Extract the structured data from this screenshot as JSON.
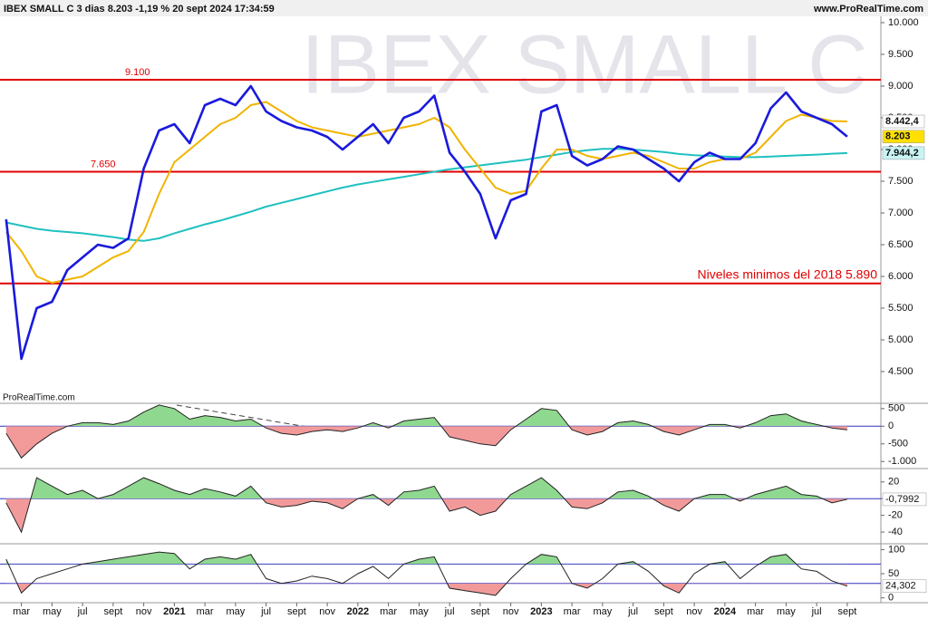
{
  "chart_data": {
    "type": "line",
    "title": "IBEX SMALL C 3 dias 8.203 -1,19 % 20 sept 2024 17:34:59",
    "source": "www.ProRealTime.com",
    "watermark": "IBEX SMALL C",
    "brand": "ProRealTime.com",
    "x": [
      1,
      2,
      3,
      4,
      5,
      6,
      7,
      8,
      9,
      10,
      11,
      12,
      13,
      14,
      15,
      16,
      17,
      18,
      19,
      20,
      21,
      22,
      23,
      24,
      25,
      26,
      27,
      28,
      29,
      30,
      31,
      32,
      33,
      34,
      35,
      36,
      37,
      38,
      39,
      40,
      41,
      42,
      43,
      44,
      45,
      46,
      47,
      48,
      49,
      50,
      51,
      52,
      53,
      54,
      55,
      56
    ],
    "xlim": [
      0.6,
      58.2
    ],
    "xticks": [
      {
        "value": 2,
        "label": "mar"
      },
      {
        "value": 4,
        "label": "may"
      },
      {
        "value": 6,
        "label": "jul"
      },
      {
        "value": 8,
        "label": "sept"
      },
      {
        "value": 10,
        "label": "nov"
      },
      {
        "value": 12,
        "label": "2021"
      },
      {
        "value": 14,
        "label": "mar"
      },
      {
        "value": 16,
        "label": "may"
      },
      {
        "value": 18,
        "label": "jul"
      },
      {
        "value": 20,
        "label": "sept"
      },
      {
        "value": 22,
        "label": "nov"
      },
      {
        "value": 24,
        "label": "2022"
      },
      {
        "value": 26,
        "label": "mar"
      },
      {
        "value": 28,
        "label": "may"
      },
      {
        "value": 30,
        "label": "jul"
      },
      {
        "value": 32,
        "label": "sept"
      },
      {
        "value": 34,
        "label": "nov"
      },
      {
        "value": 36,
        "label": "2023"
      },
      {
        "value": 38,
        "label": "mar"
      },
      {
        "value": 40,
        "label": "may"
      },
      {
        "value": 42,
        "label": "jul"
      },
      {
        "value": 44,
        "label": "sept"
      },
      {
        "value": 46,
        "label": "nov"
      },
      {
        "value": 48,
        "label": "2024"
      },
      {
        "value": 50,
        "label": "mar"
      },
      {
        "value": 52,
        "label": "may"
      },
      {
        "value": 54,
        "label": "jul"
      },
      {
        "value": 56,
        "label": "sept"
      }
    ],
    "ylim": [
      4000,
      10100
    ],
    "yticks": [
      {
        "value": 4500,
        "label": "4.500"
      },
      {
        "value": 5000,
        "label": "5.000"
      },
      {
        "value": 5500,
        "label": "5.500"
      },
      {
        "value": 6000,
        "label": "6.000"
      },
      {
        "value": 6500,
        "label": "6.500"
      },
      {
        "value": 7000,
        "label": "7.000"
      },
      {
        "value": 7500,
        "label": "7.500"
      },
      {
        "value": 8000,
        "label": "8.000"
      },
      {
        "value": 8500,
        "label": "8.500"
      },
      {
        "value": 9000,
        "label": "9.000"
      },
      {
        "value": 9500,
        "label": "9.500"
      },
      {
        "value": 10000,
        "label": "10.000"
      }
    ],
    "series": [
      {
        "name": "MM 200",
        "color": "#20c0c0",
        "values": [
          6850,
          6800,
          6750,
          6720,
          6700,
          6680,
          6650,
          6620,
          6580,
          6560,
          6600,
          6680,
          6750,
          6820,
          6880,
          6950,
          7020,
          7100,
          7160,
          7220,
          7280,
          7340,
          7400,
          7450,
          7490,
          7530,
          7570,
          7610,
          7650,
          7690,
          7720,
          7750,
          7780,
          7810,
          7840,
          7880,
          7920,
          7960,
          7990,
          8010,
          8010,
          8000,
          7980,
          7960,
          7930,
          7910,
          7900,
          7890,
          7880,
          7880,
          7890,
          7900,
          7910,
          7920,
          7935,
          7944.2
        ]
      },
      {
        "name": "MM",
        "color": "#f0b400",
        "values": [
          6700,
          6400,
          6000,
          5900,
          5950,
          6000,
          6150,
          6300,
          6400,
          6700,
          7300,
          7800,
          8000,
          8200,
          8400,
          8500,
          8700,
          8750,
          8600,
          8450,
          8350,
          8300,
          8250,
          8200,
          8250,
          8300,
          8350,
          8400,
          8500,
          8350,
          8000,
          7700,
          7400,
          7300,
          7350,
          7700,
          8000,
          8000,
          7900,
          7850,
          7900,
          7950,
          7900,
          7800,
          7700,
          7700,
          7800,
          7850,
          7850,
          7950,
          8200,
          8450,
          8550,
          8500,
          8450,
          8442.4
        ]
      },
      {
        "name": "IBEX SMALL C",
        "color": "#1a1adc",
        "values": [
          6900,
          4700,
          5500,
          5600,
          6100,
          6300,
          6500,
          6450,
          6600,
          7700,
          8300,
          8400,
          8100,
          8700,
          8800,
          8700,
          9000,
          8600,
          8450,
          8350,
          8300,
          8200,
          8000,
          8200,
          8400,
          8100,
          8500,
          8600,
          8850,
          7950,
          7650,
          7300,
          6600,
          7200,
          7300,
          8600,
          8700,
          7900,
          7750,
          7850,
          8050,
          8000,
          7850,
          7700,
          7500,
          7800,
          7950,
          7850,
          7850,
          8100,
          8650,
          8900,
          8600,
          8500,
          8400,
          8203
        ]
      }
    ],
    "hlines": [
      {
        "value": 9100,
        "label": "9.100",
        "color": "#e00000"
      },
      {
        "value": 7650,
        "label": "7.650",
        "color": "#e00000"
      },
      {
        "value": 5890,
        "label": "Niveles minimos del 2018  5.890",
        "color": "#e00000"
      }
    ],
    "tags": [
      {
        "value": 8442.4,
        "label": "8.442,4",
        "color": "#ffffff"
      },
      {
        "value": 8203,
        "label": "8.203",
        "color": "#ffe000"
      },
      {
        "value": 7944.2,
        "label": "7.944,2",
        "color": "#c8f4f4"
      }
    ],
    "panels": [
      {
        "type": "area",
        "ylim": [
          -1200,
          650
        ],
        "yticks": [
          500,
          0,
          -500,
          {
            "value": -1000,
            "label": "-1.000"
          }
        ],
        "levels": [
          0
        ],
        "values": [
          -200,
          -900,
          -500,
          -200,
          0,
          100,
          100,
          50,
          150,
          400,
          600,
          500,
          200,
          300,
          250,
          150,
          200,
          -50,
          -200,
          -250,
          -150,
          -100,
          -150,
          -50,
          100,
          -50,
          150,
          200,
          250,
          -300,
          -400,
          -500,
          -550,
          -100,
          200,
          500,
          450,
          -100,
          -250,
          -150,
          100,
          150,
          50,
          -150,
          -250,
          -100,
          50,
          50,
          -50,
          100,
          300,
          350,
          150,
          50,
          -50,
          -100
        ]
      },
      {
        "type": "area",
        "ylim": [
          -54,
          36
        ],
        "yticks": [
          20,
          0,
          -20,
          -40
        ],
        "levels": [
          0
        ],
        "values": [
          -5,
          -40,
          25,
          15,
          5,
          10,
          0,
          5,
          15,
          25,
          18,
          10,
          5,
          12,
          8,
          3,
          15,
          -5,
          -10,
          -8,
          -3,
          -5,
          -12,
          0,
          5,
          -8,
          8,
          10,
          15,
          -15,
          -10,
          -20,
          -15,
          5,
          15,
          25,
          10,
          -10,
          -12,
          -5,
          8,
          10,
          3,
          -8,
          -15,
          0,
          5,
          5,
          -3,
          5,
          10,
          15,
          5,
          3,
          -5,
          -0.7992
        ],
        "tag": {
          "value": -0.7992,
          "label": "-0,7992"
        }
      },
      {
        "type": "area",
        "ylim": [
          -10,
          112
        ],
        "yticks": [
          100,
          50,
          0
        ],
        "levels": [
          30,
          70
        ],
        "values": [
          80,
          10,
          40,
          50,
          60,
          70,
          75,
          80,
          85,
          90,
          95,
          92,
          60,
          80,
          85,
          80,
          90,
          40,
          30,
          35,
          45,
          40,
          30,
          50,
          65,
          40,
          70,
          80,
          85,
          20,
          15,
          10,
          5,
          40,
          70,
          90,
          85,
          30,
          20,
          40,
          70,
          75,
          55,
          25,
          10,
          50,
          70,
          75,
          40,
          65,
          85,
          90,
          60,
          55,
          35,
          24.302
        ],
        "tag": {
          "value": 24.302,
          "label": "24,302"
        }
      }
    ]
  }
}
